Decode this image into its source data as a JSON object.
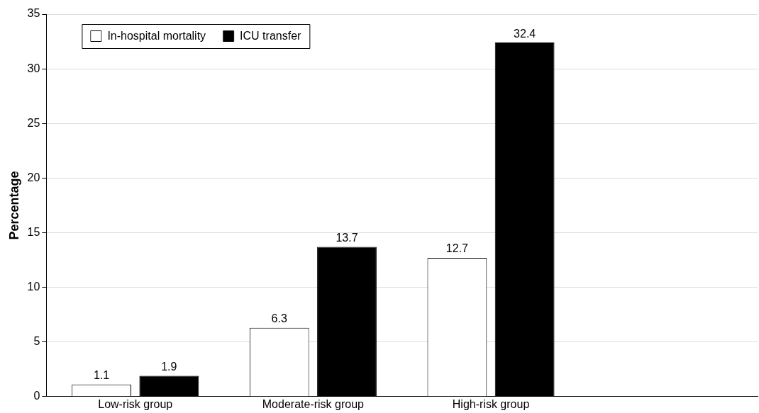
{
  "chart_data": {
    "type": "bar",
    "ylabel": "Percentage",
    "categories": [
      "Low-risk group",
      "Moderate-risk group",
      "High-risk group",
      null
    ],
    "series": [
      {
        "name": "In-hospital mortality",
        "color": "#ffffff",
        "values": [
          1.1,
          6.3,
          12.7,
          null
        ]
      },
      {
        "name": "ICU transfer",
        "color": "#000000",
        "values": [
          1.9,
          13.7,
          32.4,
          null
        ]
      }
    ],
    "ylim": [
      0,
      35
    ],
    "yticks": [
      0,
      5,
      10,
      15,
      20,
      25,
      30,
      35
    ],
    "grid": "y",
    "legend": "top left",
    "data_labels": true
  }
}
